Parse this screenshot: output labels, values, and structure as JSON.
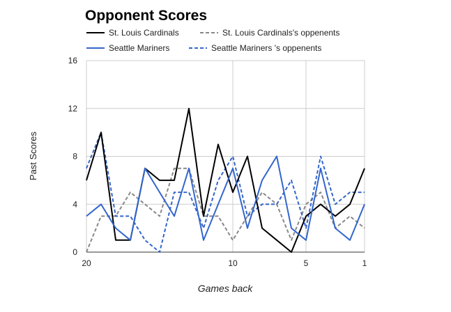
{
  "chart_data": {
    "type": "line",
    "title": "Opponent Scores",
    "xlabel": "Games back",
    "ylabel": "Past Scores",
    "x_ticks": [
      20,
      10,
      5,
      1
    ],
    "xlim": [
      20,
      1
    ],
    "ylim": [
      0,
      16
    ],
    "y_ticks": [
      0,
      4,
      8,
      12,
      16
    ],
    "grid": true,
    "legend_position": "top",
    "x": [
      20,
      19,
      18,
      17,
      16,
      15,
      14,
      13,
      12,
      11,
      10,
      9,
      8,
      7,
      6,
      5,
      4,
      3,
      2,
      1
    ],
    "series": [
      {
        "name": "St. Louis Cardinals",
        "color": "#000000",
        "style": "solid",
        "values": [
          6,
          10,
          1,
          1,
          7,
          6,
          6,
          12,
          3,
          9,
          5,
          8,
          2,
          1,
          0,
          3,
          4,
          3,
          4,
          7
        ]
      },
      {
        "name": "St. Louis Cardinals's oppenents",
        "color": "#888888",
        "style": "dashed",
        "values": [
          0,
          3,
          3,
          5,
          4,
          3,
          7,
          7,
          3,
          3,
          1,
          3,
          5,
          4,
          1,
          4,
          5,
          2,
          3,
          2
        ]
      },
      {
        "name": "Seattle Mariners",
        "color": "#3366cc",
        "style": "solid",
        "values": [
          3,
          4,
          2,
          1,
          7,
          5,
          3,
          7,
          1,
          4,
          7,
          2,
          6,
          8,
          2,
          1,
          7,
          2,
          1,
          4
        ]
      },
      {
        "name": "Seattle Mariners 's oppenents",
        "color": "#3366cc",
        "style": "dashed",
        "values": [
          7,
          10,
          3,
          3,
          1,
          0,
          5,
          5,
          2,
          6,
          8,
          3,
          4,
          4,
          6,
          2,
          8,
          4,
          5,
          5
        ]
      }
    ]
  }
}
